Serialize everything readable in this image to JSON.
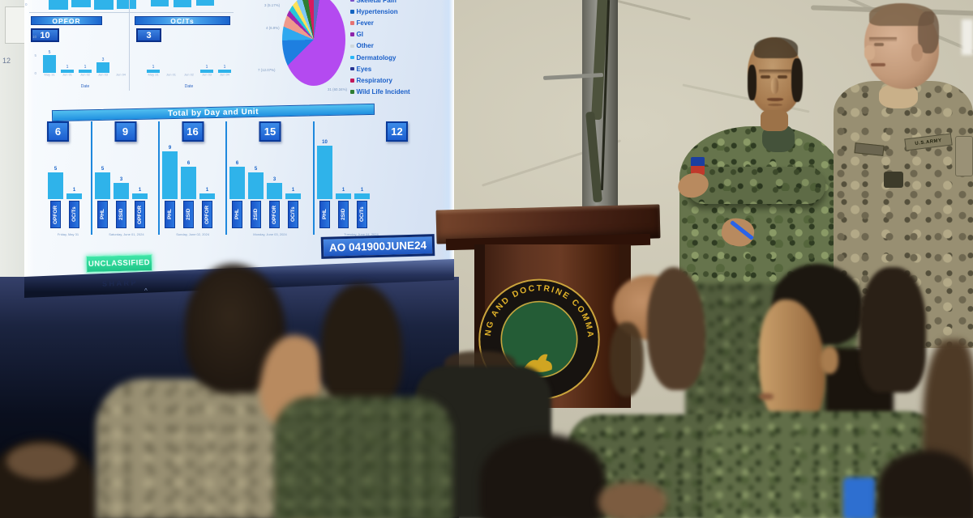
{
  "screen": {
    "classification_badge": "UNCLASSIFIED",
    "tv_brand": "SHARP",
    "ao_stamp": "AO 041900JUNE24",
    "wall_axis_label": "12",
    "top_axis_tick": "0"
  },
  "podium": {
    "emblem_text": "NG AND DOCTRINE COMMA"
  },
  "colonel": {
    "army_tape": "U.S.ARMY"
  },
  "chart_data": [
    {
      "type": "bar",
      "title": "OPFOR",
      "total_badge": 10,
      "categories": [
        "May 31",
        "Jun 01",
        "Jun 02",
        "Jun 03",
        "Jun 04"
      ],
      "values": [
        5,
        1,
        1,
        3,
        0
      ],
      "xlabel": "Date",
      "yticks": [
        10,
        5,
        0
      ],
      "bar_color": "#2fb3ea"
    },
    {
      "type": "bar",
      "title": "OC/Ts",
      "total_badge": 3,
      "categories": [
        "May 31",
        "Jun 01",
        "Jun 02",
        "Jun 03",
        "Jun 04"
      ],
      "values": [
        1,
        0,
        0,
        1,
        1
      ],
      "xlabel": "Date",
      "yticks": [],
      "bar_color": "#2fb3ea"
    },
    {
      "type": "pie",
      "callouts": [
        "3 (5.17%)",
        "4 (6.9%)",
        "7 (12.07%)",
        "31 (60.34%)"
      ],
      "slices": [
        {
          "value": 31,
          "pct": 60.34,
          "color": "#b44af0"
        },
        {
          "value": 7,
          "pct": 12.07,
          "color": "#1e7fe0"
        },
        {
          "value": 4,
          "pct": 6.9,
          "color": "#2fa8ef"
        },
        {
          "value": 3,
          "pct": 5.17,
          "color": "#ef9a8c"
        }
      ],
      "minor_slice_colors": [
        "#9c27b0",
        "#26c6da",
        "#ffe158",
        "#7ec8f5",
        "#2e7d32",
        "#d81b60",
        "#5c6bc0"
      ],
      "legend": [
        {
          "label": "Skeletal Pain",
          "color": "#7b52c8"
        },
        {
          "label": "Hypertension",
          "color": "#1565c0"
        },
        {
          "label": "Fever",
          "color": "#e57373"
        },
        {
          "label": "GI",
          "color": "#8e24aa"
        },
        {
          "label": "Other",
          "color": "#cfd8dc"
        },
        {
          "label": "Dermatology",
          "color": "#29b6f6"
        },
        {
          "label": "Eyes",
          "color": "#283593"
        },
        {
          "label": "Respiratory",
          "color": "#c2185b"
        },
        {
          "label": "Wild Life Incident",
          "color": "#2e7d32"
        }
      ]
    },
    {
      "type": "bar",
      "title": "Total by Day and Unit",
      "groups": [
        {
          "date": "Friday, May 31",
          "total": 6,
          "bars": [
            {
              "unit": "OPFOR",
              "value": 5
            },
            {
              "unit": "OC/Ts",
              "value": 1
            }
          ]
        },
        {
          "date": "Saturday, June 01, 2024",
          "total": 9,
          "bars": [
            {
              "unit": "PHL",
              "value": 5
            },
            {
              "unit": "2SID",
              "value": 3
            },
            {
              "unit": "OPFOR",
              "value": 1
            }
          ]
        },
        {
          "date": "Sunday, June 02, 2024",
          "total": 16,
          "bars": [
            {
              "unit": "PHL",
              "value": 9
            },
            {
              "unit": "2SID",
              "value": 6
            },
            {
              "unit": "OPFOR",
              "value": 1
            }
          ]
        },
        {
          "date": "Monday, June 03, 2024",
          "total": 15,
          "bars": [
            {
              "unit": "PHL",
              "value": 6
            },
            {
              "unit": "2SID",
              "value": 5
            },
            {
              "unit": "OPFOR",
              "value": 3
            },
            {
              "unit": "OC/Ts",
              "value": 1
            }
          ]
        },
        {
          "date": "Tuesday, June 04, 2024",
          "total": 12,
          "bars": [
            {
              "unit": "PHL",
              "value": 10
            },
            {
              "unit": "2SID",
              "value": 1
            },
            {
              "unit": "OC/Ts",
              "value": 1
            }
          ]
        }
      ]
    }
  ]
}
